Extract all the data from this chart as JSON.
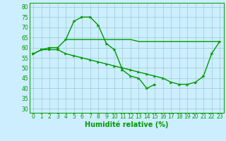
{
  "x": [
    0,
    1,
    2,
    3,
    4,
    5,
    6,
    7,
    8,
    9,
    10,
    11,
    12,
    13,
    14,
    15,
    16,
    17,
    18,
    19,
    20,
    21,
    22,
    23
  ],
  "line1": [
    57,
    59,
    60,
    60,
    64,
    73,
    75,
    75,
    71,
    62,
    59,
    49,
    46,
    45,
    40,
    42,
    null,
    null,
    null,
    null,
    null,
    null,
    null,
    null
  ],
  "line2": [
    57,
    59,
    59,
    59,
    57,
    56,
    55,
    54,
    53,
    52,
    51,
    50,
    49,
    48,
    47,
    46,
    45,
    43,
    42,
    42,
    43,
    46,
    57,
    63
  ],
  "line3": [
    null,
    null,
    null,
    null,
    64,
    64,
    64,
    64,
    64,
    64,
    64,
    64,
    64,
    63,
    63,
    63,
    63,
    63,
    63,
    63,
    63,
    63,
    63,
    63
  ],
  "bg_color": "#cceeff",
  "grid_color": "#99cccc",
  "line_color": "#009900",
  "xlabel": "Humidité relative (%)",
  "ylim": [
    28,
    82
  ],
  "xlim": [
    -0.5,
    23.5
  ],
  "yticks": [
    30,
    35,
    40,
    45,
    50,
    55,
    60,
    65,
    70,
    75,
    80
  ],
  "xticks": [
    0,
    1,
    2,
    3,
    4,
    5,
    6,
    7,
    8,
    9,
    10,
    11,
    12,
    13,
    14,
    15,
    16,
    17,
    18,
    19,
    20,
    21,
    22,
    23
  ],
  "tick_fontsize": 5.5,
  "xlabel_fontsize": 7.0,
  "lw": 1.0,
  "marker_size": 2.5
}
